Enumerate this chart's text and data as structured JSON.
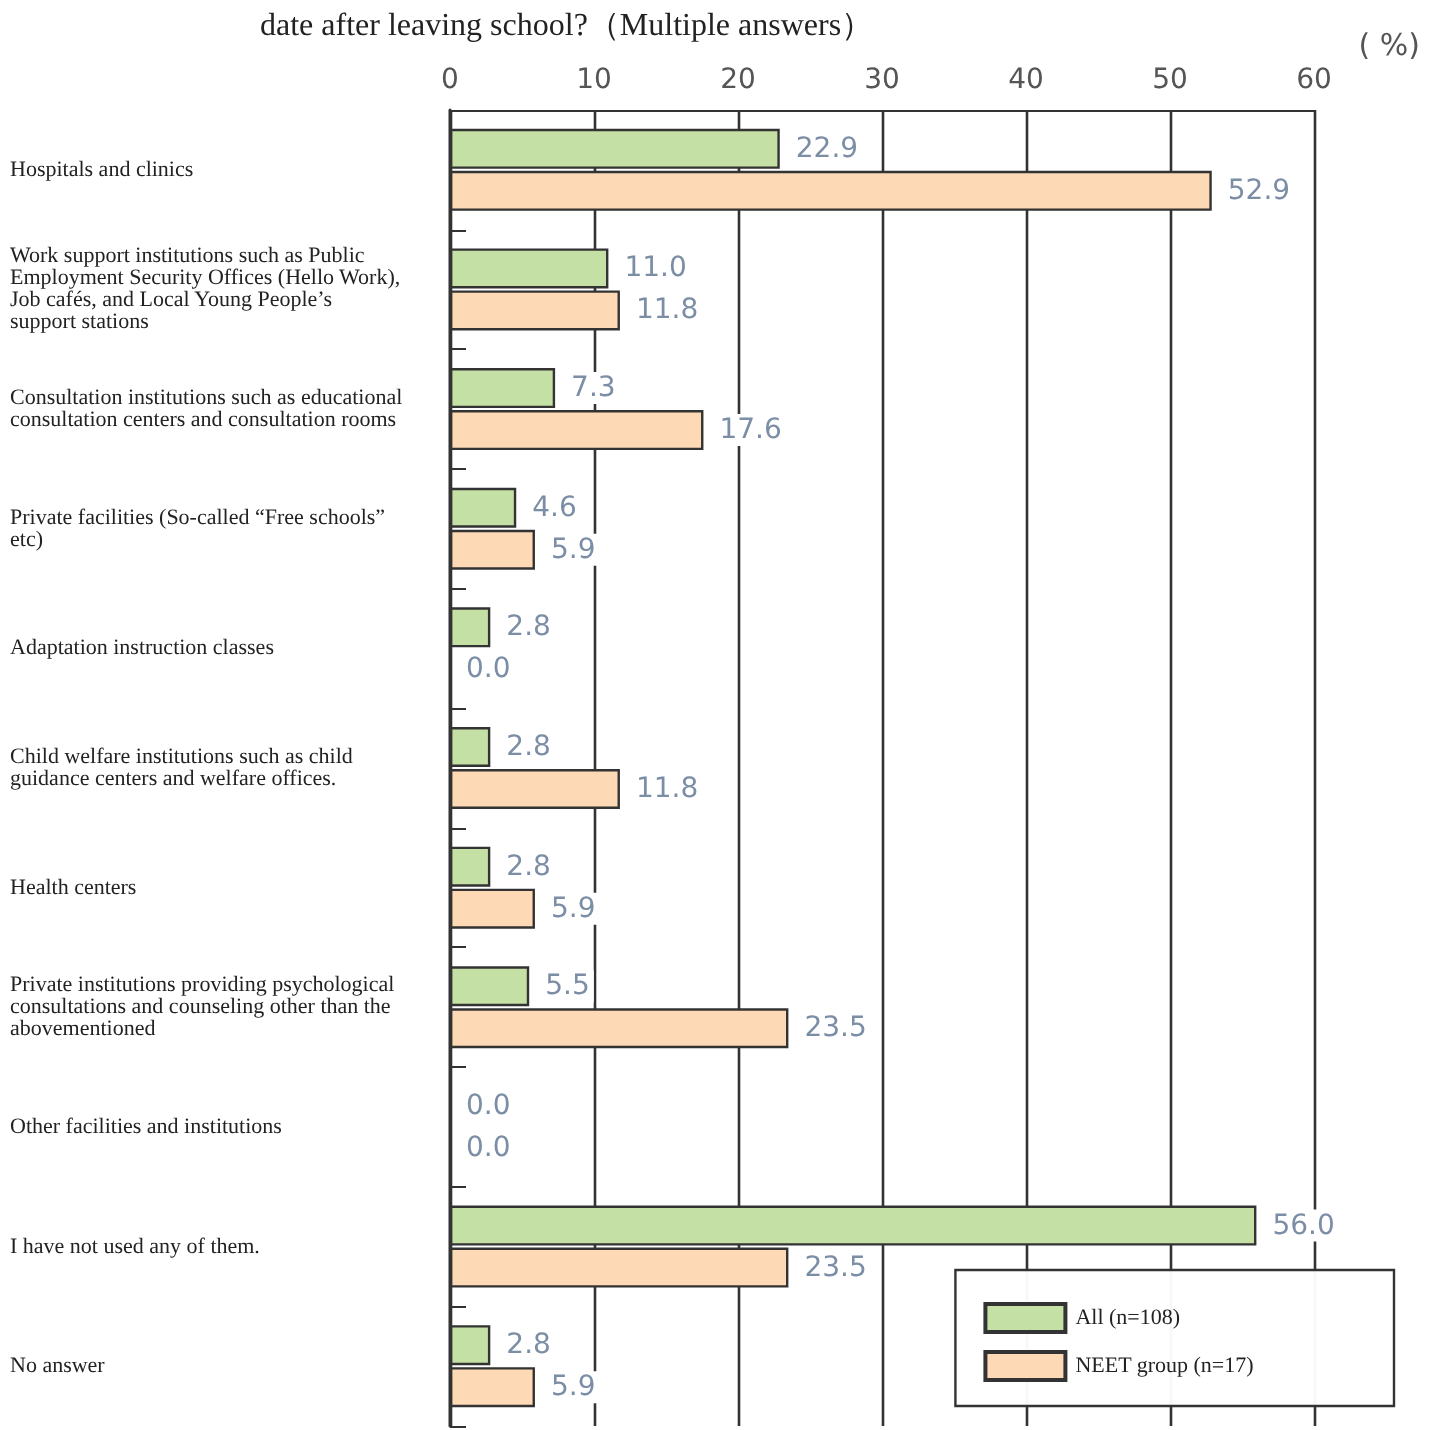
{
  "chart_data": {
    "type": "bar",
    "orientation": "horizontal",
    "title": "date after leaving school?（Multiple answers）",
    "xlabel": "( %)",
    "categories": [
      "Hospitals and clinics",
      "Work support institutions such as Public Employment Security Offices (Hello Work), Job cafés, and Local Young People’s support stations",
      "Consultation institutions such as educational consultation centers and consultation rooms",
      "Private facilities (So-called “Free schools” etc)",
      "Adaptation instruction classes",
      "Child welfare institutions such as child guidance centers and welfare offices.",
      "Health centers",
      "Private institutions providing psychological consultations and counseling other than the abovementioned",
      "Other facilities and institutions",
      "I have not used any of them.",
      "No answer"
    ],
    "series": [
      {
        "name": "All (n=108)",
        "color": "#c5e0a5",
        "values": [
          22.9,
          11.0,
          7.3,
          4.6,
          2.8,
          2.8,
          2.8,
          5.5,
          0.0,
          56.0,
          2.8
        ],
        "value_labels": [
          "22.9",
          "11.0",
          "7.3",
          "4.6",
          "2.8",
          "2.8",
          "2.8",
          "5.5",
          "0.0",
          "56.0",
          "2.8"
        ]
      },
      {
        "name": "NEET group (n=17)",
        "color": "#fdd9b5",
        "values": [
          52.9,
          11.8,
          17.6,
          5.9,
          0.0,
          11.8,
          5.9,
          23.5,
          0.0,
          23.5,
          5.9
        ],
        "value_labels": [
          "52.9",
          "11.8",
          "17.6",
          "5.9",
          "0.0",
          "11.8",
          "5.9",
          "23.5",
          "0.0",
          "23.5",
          "5.9"
        ]
      }
    ],
    "xlim": [
      0,
      60
    ],
    "xticks": [
      0,
      10,
      20,
      30,
      40,
      50,
      60
    ],
    "grid": "x",
    "legend": "bottom right"
  }
}
